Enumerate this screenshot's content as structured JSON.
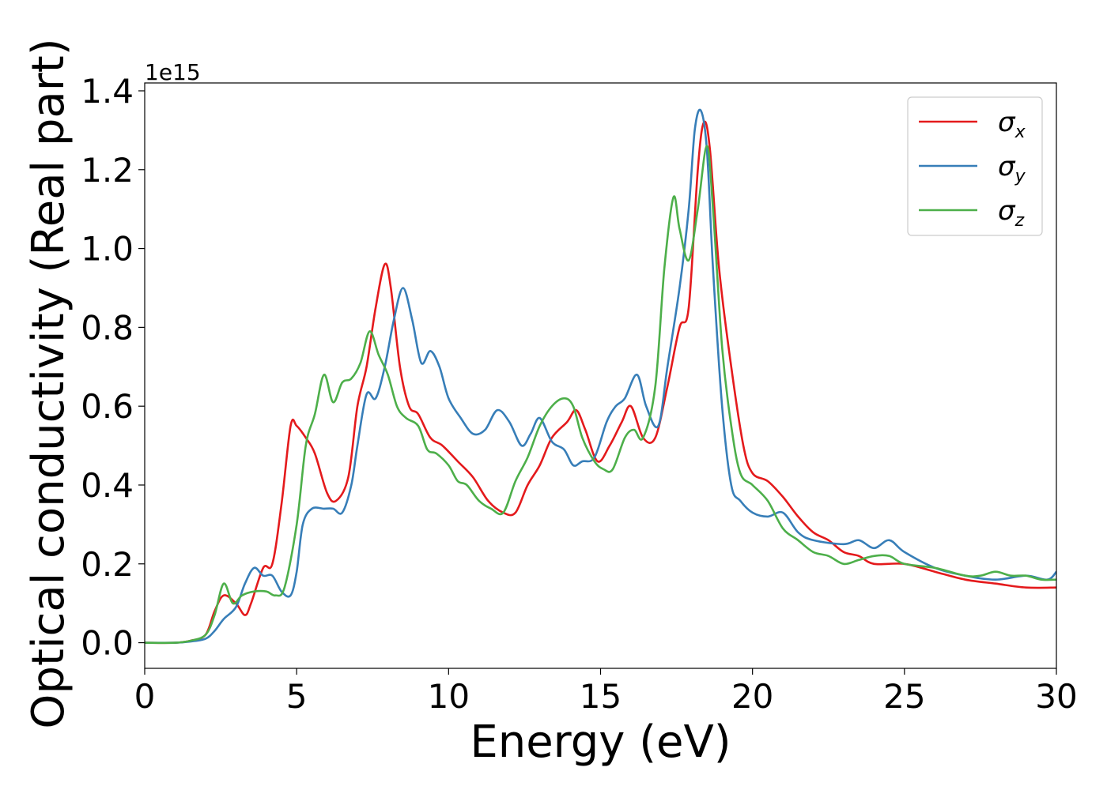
{
  "chart_data": {
    "type": "line",
    "title": "",
    "xlabel": "Energy (eV)",
    "ylabel": "Optical conductivity (Real part)",
    "y_offset_text": "1e15",
    "y_multiplier": 1000000000000000.0,
    "xlim": [
      0,
      30
    ],
    "ylim": [
      -0.065,
      1.42
    ],
    "x_ticks": [
      0,
      5,
      10,
      15,
      20,
      25,
      30
    ],
    "y_ticks": [
      0.0,
      0.2,
      0.4,
      0.6,
      0.8,
      1.0,
      1.2,
      1.4
    ],
    "x_tick_labels": [
      "0",
      "5",
      "10",
      "15",
      "20",
      "25",
      "30"
    ],
    "y_tick_labels": [
      "0.0",
      "0.2",
      "0.4",
      "0.6",
      "0.8",
      "1.0",
      "1.2",
      "1.4"
    ],
    "grid": false,
    "legend_position": "top-right",
    "legend": [
      {
        "symbol": "σ",
        "subscript": "x",
        "color": "#e41a1c"
      },
      {
        "symbol": "σ",
        "subscript": "y",
        "color": "#377eb8"
      },
      {
        "symbol": "σ",
        "subscript": "z",
        "color": "#4daf4a"
      }
    ],
    "series": [
      {
        "color": "#e41a1c",
        "x": [
          0,
          1,
          1.5,
          2,
          2.3,
          2.6,
          3.0,
          3.3,
          3.5,
          3.9,
          4.2,
          4.5,
          4.8,
          5.0,
          5.3,
          5.6,
          6.0,
          6.3,
          6.7,
          7.0,
          7.3,
          7.6,
          7.9,
          8.1,
          8.4,
          8.7,
          9.0,
          9.4,
          9.8,
          10.3,
          10.8,
          11.3,
          11.8,
          12.2,
          12.6,
          13.0,
          13.4,
          13.9,
          14.2,
          14.5,
          14.9,
          15.3,
          15.7,
          16.0,
          16.4,
          16.8,
          17.2,
          17.6,
          17.9,
          18.2,
          18.4,
          18.6,
          18.9,
          19.3,
          19.7,
          20.0,
          20.5,
          21.0,
          21.5,
          22.0,
          22.5,
          23.0,
          23.5,
          24.0,
          25.0,
          26.0,
          27.0,
          28.0,
          29.0,
          30.0
        ],
        "values": [
          0.0,
          0.0,
          0.005,
          0.02,
          0.08,
          0.12,
          0.1,
          0.07,
          0.1,
          0.19,
          0.2,
          0.35,
          0.55,
          0.55,
          0.52,
          0.48,
          0.38,
          0.36,
          0.42,
          0.6,
          0.7,
          0.85,
          0.96,
          0.9,
          0.7,
          0.6,
          0.58,
          0.52,
          0.5,
          0.46,
          0.42,
          0.36,
          0.33,
          0.33,
          0.4,
          0.45,
          0.52,
          0.56,
          0.59,
          0.54,
          0.46,
          0.5,
          0.56,
          0.6,
          0.52,
          0.52,
          0.65,
          0.8,
          0.85,
          1.2,
          1.32,
          1.25,
          0.95,
          0.7,
          0.5,
          0.43,
          0.41,
          0.37,
          0.32,
          0.28,
          0.26,
          0.23,
          0.22,
          0.2,
          0.2,
          0.18,
          0.16,
          0.15,
          0.14,
          0.14
        ]
      },
      {
        "color": "#377eb8",
        "x": [
          0,
          1,
          1.5,
          2,
          2.3,
          2.6,
          3.0,
          3.3,
          3.6,
          3.9,
          4.2,
          4.5,
          4.8,
          5.0,
          5.2,
          5.5,
          5.9,
          6.2,
          6.5,
          6.8,
          7.0,
          7.3,
          7.6,
          7.9,
          8.2,
          8.5,
          8.8,
          9.1,
          9.4,
          9.7,
          10.0,
          10.4,
          10.8,
          11.2,
          11.6,
          12.0,
          12.4,
          12.7,
          13.0,
          13.4,
          13.8,
          14.1,
          14.4,
          14.8,
          15.2,
          15.5,
          15.8,
          16.2,
          16.5,
          16.9,
          17.2,
          17.6,
          17.9,
          18.1,
          18.3,
          18.5,
          18.7,
          19.0,
          19.3,
          19.6,
          20.0,
          20.5,
          21.0,
          21.5,
          22.0,
          23.0,
          23.5,
          24.0,
          24.5,
          25.0,
          26.0,
          27.0,
          28.0,
          29.0,
          29.7,
          30.0
        ],
        "values": [
          0.0,
          0.0,
          0.003,
          0.01,
          0.03,
          0.06,
          0.09,
          0.15,
          0.19,
          0.17,
          0.17,
          0.13,
          0.12,
          0.18,
          0.3,
          0.34,
          0.34,
          0.34,
          0.33,
          0.4,
          0.5,
          0.63,
          0.62,
          0.7,
          0.82,
          0.9,
          0.82,
          0.71,
          0.74,
          0.7,
          0.62,
          0.57,
          0.53,
          0.54,
          0.59,
          0.56,
          0.5,
          0.53,
          0.57,
          0.51,
          0.49,
          0.45,
          0.46,
          0.47,
          0.56,
          0.6,
          0.62,
          0.68,
          0.6,
          0.55,
          0.7,
          0.9,
          1.1,
          1.3,
          1.35,
          1.25,
          0.95,
          0.6,
          0.4,
          0.36,
          0.33,
          0.32,
          0.33,
          0.28,
          0.26,
          0.25,
          0.26,
          0.24,
          0.26,
          0.23,
          0.19,
          0.17,
          0.16,
          0.17,
          0.16,
          0.18
        ]
      },
      {
        "color": "#4daf4a",
        "x": [
          0,
          1,
          1.5,
          2,
          2.3,
          2.6,
          2.9,
          3.2,
          3.6,
          4.0,
          4.3,
          4.6,
          5.0,
          5.3,
          5.6,
          5.9,
          6.2,
          6.5,
          6.8,
          7.1,
          7.4,
          7.7,
          8.0,
          8.3,
          8.6,
          9.0,
          9.3,
          9.6,
          10.0,
          10.3,
          10.6,
          11.0,
          11.4,
          11.8,
          12.2,
          12.6,
          13.0,
          13.4,
          13.8,
          14.1,
          14.4,
          14.8,
          15.1,
          15.4,
          15.8,
          16.1,
          16.4,
          16.8,
          17.1,
          17.4,
          17.6,
          17.9,
          18.2,
          18.5,
          18.7,
          19.0,
          19.3,
          19.6,
          20.0,
          20.5,
          21.0,
          21.5,
          22.0,
          22.5,
          23.0,
          23.5,
          24.0,
          24.5,
          25.0,
          26.0,
          27.0,
          27.5,
          28.0,
          28.5,
          29.0,
          29.5,
          30.0
        ],
        "values": [
          0.0,
          0.0,
          0.005,
          0.02,
          0.07,
          0.15,
          0.1,
          0.12,
          0.13,
          0.13,
          0.12,
          0.14,
          0.3,
          0.5,
          0.58,
          0.68,
          0.61,
          0.66,
          0.67,
          0.71,
          0.79,
          0.73,
          0.68,
          0.6,
          0.57,
          0.55,
          0.49,
          0.48,
          0.45,
          0.41,
          0.4,
          0.36,
          0.34,
          0.33,
          0.41,
          0.47,
          0.55,
          0.6,
          0.62,
          0.6,
          0.52,
          0.46,
          0.44,
          0.44,
          0.52,
          0.54,
          0.52,
          0.65,
          0.95,
          1.13,
          1.05,
          0.97,
          1.1,
          1.26,
          1.1,
          0.75,
          0.55,
          0.43,
          0.4,
          0.36,
          0.29,
          0.26,
          0.23,
          0.22,
          0.2,
          0.21,
          0.22,
          0.22,
          0.2,
          0.19,
          0.17,
          0.17,
          0.18,
          0.17,
          0.17,
          0.16,
          0.16
        ]
      }
    ]
  }
}
